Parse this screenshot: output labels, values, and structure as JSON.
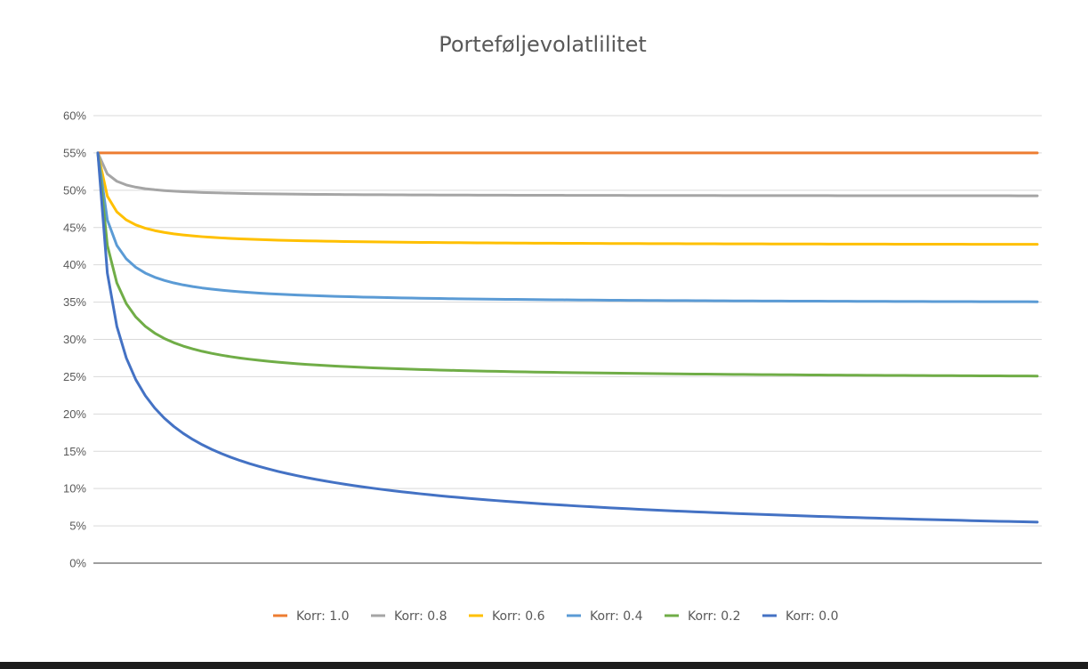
{
  "chart_data": {
    "type": "line",
    "title": "Porteføljevolatlilitet",
    "xlabel": "",
    "ylabel": "",
    "ylim": [
      0,
      0.6
    ],
    "y_ticks": [
      "0%",
      "5%",
      "10%",
      "15%",
      "20%",
      "25%",
      "30%",
      "35%",
      "40%",
      "45%",
      "50%",
      "55%",
      "60%"
    ],
    "grid": true,
    "legend_position": "bottom",
    "x_label": "",
    "n_points": 100,
    "x_note": "",
    "series": [
      {
        "name": "Korr: 1.0",
        "color": "#ED7D31",
        "correlation": 1.0,
        "start": 0.55,
        "end": 0.55
      },
      {
        "name": "Korr: 0.8",
        "color": "#A5A5A5",
        "correlation": 0.8,
        "start": 0.55,
        "end": 0.492
      },
      {
        "name": "Korr: 0.6",
        "color": "#FFC000",
        "correlation": 0.6,
        "start": 0.55,
        "end": 0.426
      },
      {
        "name": "Korr: 0.4",
        "color": "#5B9BD5",
        "correlation": 0.4,
        "start": 0.55,
        "end": 0.348
      },
      {
        "name": "Korr: 0.2",
        "color": "#70AD47",
        "correlation": 0.2,
        "start": 0.55,
        "end": 0.246
      },
      {
        "name": "Korr: 0.0",
        "color": "#4472C4",
        "correlation": 0.0,
        "start": 0.55,
        "end": 0.055
      }
    ],
    "x": [
      1,
      2,
      3,
      4,
      5,
      6,
      7,
      8,
      9,
      10,
      11,
      12,
      13,
      14,
      15,
      16,
      17,
      18,
      19,
      20,
      21,
      22,
      23,
      24,
      25,
      26,
      27,
      28,
      29,
      30,
      31,
      32,
      33,
      34,
      35,
      36,
      37,
      38,
      39,
      40,
      41,
      42,
      43,
      44,
      45,
      46,
      47,
      48,
      49,
      50,
      51,
      52,
      53,
      54,
      55,
      56,
      57,
      58,
      59,
      60,
      61,
      62,
      63,
      64,
      65,
      66,
      67,
      68,
      69,
      70,
      71,
      72,
      73,
      74,
      75,
      76,
      77,
      78,
      79,
      80,
      81,
      82,
      83,
      84,
      85,
      86,
      87,
      88,
      89,
      90,
      91,
      92,
      93,
      94,
      95,
      96,
      97,
      98,
      99,
      100
    ]
  },
  "colors": {
    "background": "#ffffff",
    "grid": "#d9d9d9",
    "axis": "#7f7f7f",
    "text": "#595959"
  }
}
